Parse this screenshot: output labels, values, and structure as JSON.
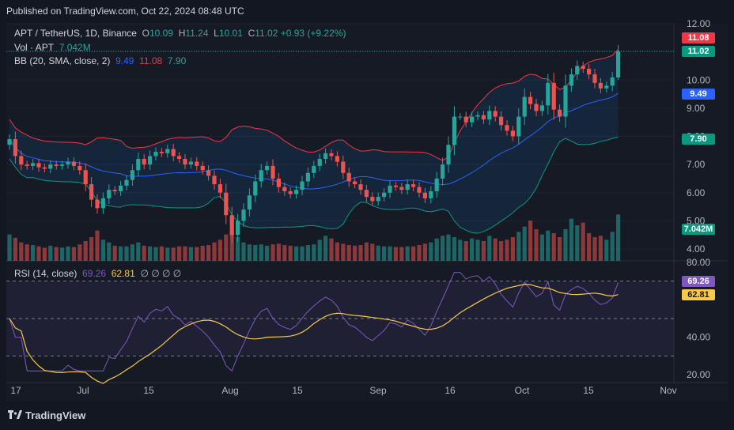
{
  "header": {
    "published": "Published on TradingView.com, Oct 22, 2024 08:48 UTC"
  },
  "legend": {
    "symbol": "APT / TetherUS, 1D, Binance",
    "o_label": "O",
    "o": "10.09",
    "h_label": "H",
    "h": "11.24",
    "l_label": "L",
    "l": "10.01",
    "c_label": "C",
    "c": "11.02",
    "change": "+0.93 (+9.22%)",
    "vol_label": "Vol · APT",
    "vol": "7.042M",
    "bb_label": "BB (20, SMA, close, 2)",
    "bb_basis": "9.49",
    "bb_upper": "11.08",
    "bb_lower": "7.90",
    "rsi_label": "RSI (14, close)",
    "rsi": "69.26",
    "rsi_ma": "62.81",
    "rsi_na": "∅ ∅ ∅ ∅"
  },
  "badges": {
    "upper": "11.08",
    "close": "11.02",
    "basis": "9.49",
    "lower": "7.90",
    "volume": "7.042M",
    "rsi": "69.26",
    "rsi_ma": "62.81"
  },
  "colors": {
    "up": "#26a69a",
    "down": "#ef5350",
    "bb_upper": "#f23645",
    "bb_basis": "#2962ff",
    "bb_lower": "#089981",
    "rsi": "#7e57c2",
    "rsi_ma": "#f7c948"
  },
  "chart_data": [
    {
      "type": "candlestick",
      "price_axis_ticks": [
        "12.00",
        "11.00",
        "10.00",
        "9.00",
        "8.00",
        "7.00",
        "6.00",
        "5.00",
        "4.00"
      ],
      "x_ticks": [
        "17",
        "Jul",
        "15",
        "Aug",
        "15",
        "Sep",
        "16",
        "Oct",
        "15",
        "Nov"
      ],
      "ylim": [
        3.6,
        12.2
      ],
      "last": {
        "open": 10.09,
        "high": 11.24,
        "low": 10.01,
        "close": 11.02
      },
      "close_series": [
        7.9,
        7.3,
        7.0,
        6.95,
        7.05,
        6.9,
        6.85,
        7.0,
        6.95,
        7.0,
        7.1,
        6.95,
        6.8,
        6.3,
        5.75,
        5.45,
        5.8,
        6.1,
        6.05,
        6.25,
        6.45,
        6.8,
        7.2,
        7.0,
        7.3,
        7.45,
        7.4,
        7.55,
        7.3,
        7.2,
        7.0,
        7.1,
        6.95,
        6.8,
        6.6,
        6.3,
        6.0,
        5.2,
        4.5,
        5.0,
        5.4,
        5.9,
        6.4,
        6.8,
        6.95,
        6.5,
        6.2,
        6.05,
        5.95,
        6.1,
        6.4,
        6.7,
        6.95,
        7.2,
        7.4,
        7.3,
        7.1,
        6.7,
        6.4,
        6.3,
        6.1,
        5.85,
        5.7,
        5.85,
        6.0,
        6.25,
        6.2,
        6.1,
        6.3,
        6.2,
        6.0,
        5.8,
        6.05,
        6.5,
        7.0,
        7.7,
        8.7,
        8.7,
        8.5,
        8.7,
        8.75,
        8.6,
        8.9,
        8.7,
        8.4,
        8.2,
        8.0,
        8.7,
        9.4,
        9.15,
        8.9,
        9.1,
        9.9,
        8.95,
        8.7,
        9.8,
        10.2,
        10.5,
        10.4,
        10.2,
        9.9,
        9.7,
        9.8,
        10.09,
        11.02
      ],
      "volume_millions": [
        4,
        3.5,
        2.8,
        2.5,
        2.4,
        2.2,
        2,
        2.3,
        2.1,
        2,
        2.2,
        2.1,
        2.5,
        3,
        3.6,
        4.6,
        3.2,
        2.8,
        2.3,
        2.2,
        2.2,
        2.5,
        2.8,
        2.3,
        2.2,
        2.1,
        2.2,
        2,
        2,
        2.2,
        2.2,
        2.1,
        2.1,
        2.3,
        2.4,
        2.8,
        3.2,
        4,
        4.4,
        3.6,
        2.8,
        2.5,
        2.4,
        2.5,
        2.3,
        2.5,
        2.6,
        2.4,
        2.3,
        2.2,
        2.2,
        2.4,
        2.5,
        3.2,
        3.8,
        3.4,
        2.8,
        2.6,
        2.4,
        2.3,
        2.4,
        2.8,
        2.6,
        2.3,
        2.2,
        2.2,
        2.1,
        2.1,
        2.2,
        2.2,
        2.4,
        2.6,
        2.8,
        3.4,
        3.8,
        4,
        3.6,
        3.2,
        3,
        3.4,
        3.2,
        3,
        3.8,
        3.4,
        3,
        3.2,
        3.6,
        4.4,
        5.2,
        6.1,
        4.8,
        4,
        4.6,
        4.2,
        3.6,
        4.8,
        6.4,
        5.4,
        5.8,
        4.2,
        3.6,
        3.8,
        3.2,
        4.4,
        7.042
      ]
    },
    {
      "type": "line",
      "name": "RSI (14, close)",
      "y_ticks": [
        "80.00",
        "40.00",
        "20.00"
      ],
      "ylim": [
        20,
        80
      ],
      "rsi_last": 69.26,
      "rsi_ma_last": 62.81,
      "levels": [
        70,
        50,
        30
      ]
    }
  ]
}
